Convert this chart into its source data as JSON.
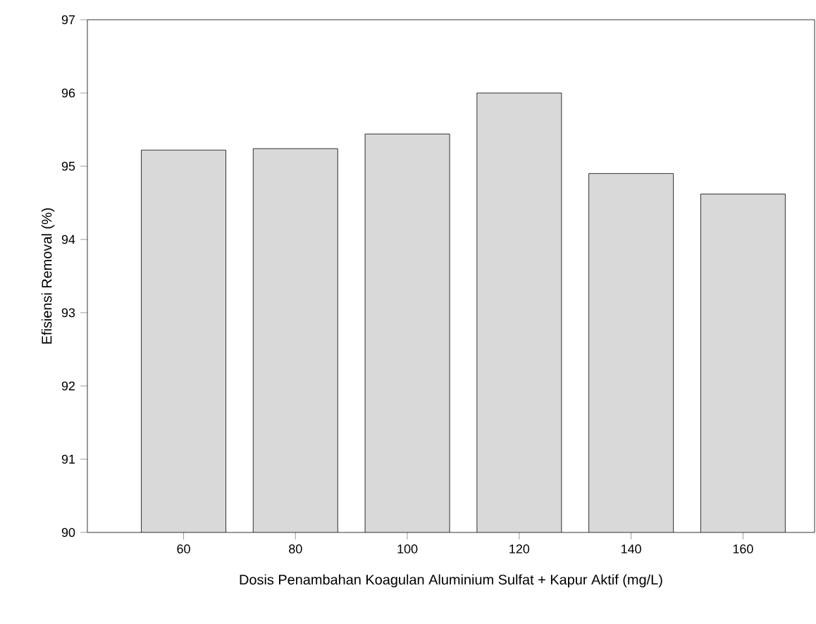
{
  "chart_data": {
    "type": "bar",
    "xlabel": "Dosis Penambahan Koagulan Aluminium Sulfat + Kapur Aktif (mg/L)",
    "ylabel": "Efisiensi Removal (%)",
    "categories": [
      "60",
      "80",
      "100",
      "120",
      "140",
      "160"
    ],
    "values": [
      95.22,
      95.24,
      95.44,
      96.0,
      94.9,
      94.62
    ],
    "color": "#d9d9d9",
    "ylim": [
      90,
      97
    ],
    "yticks": [
      90,
      91,
      92,
      93,
      94,
      95,
      96,
      97
    ]
  }
}
